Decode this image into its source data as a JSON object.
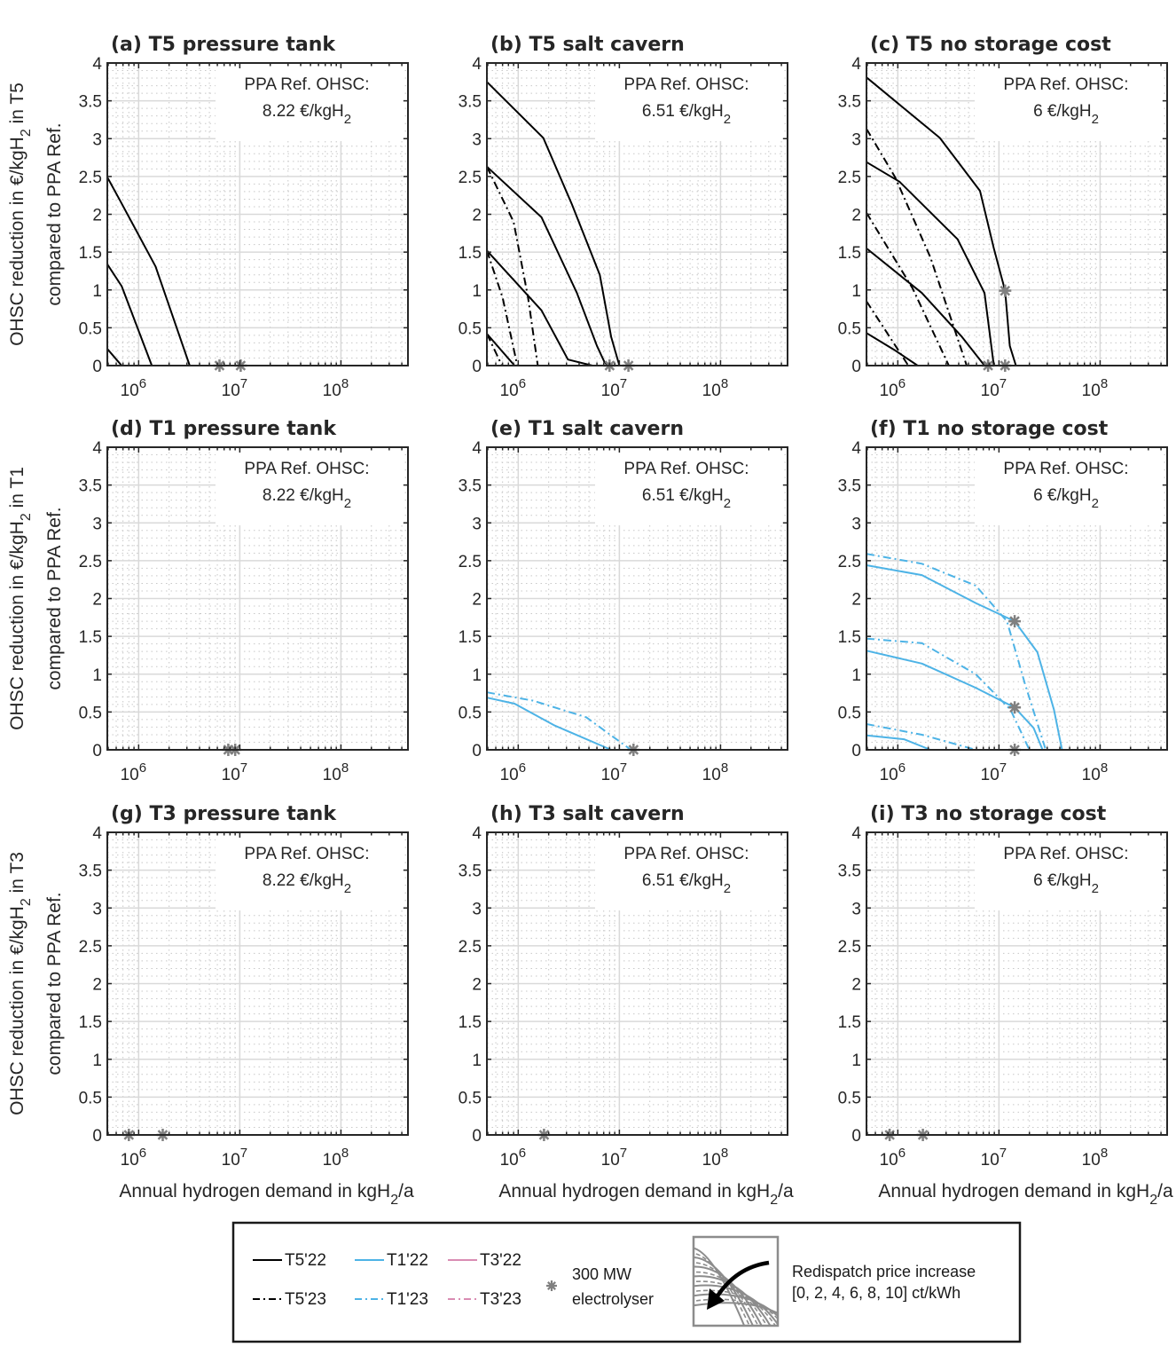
{
  "chart_data": {
    "type": "line",
    "xscale": "log",
    "xlim": [
      490000,
      460000000
    ],
    "ylim": [
      0,
      4
    ],
    "yticks": [
      "0",
      "0.5",
      "1",
      "1.5",
      "2",
      "2.5",
      "3",
      "3.5",
      "4"
    ],
    "xticks": [
      {
        "base": "10",
        "exp": "6"
      },
      {
        "base": "10",
        "exp": "7"
      },
      {
        "base": "10",
        "exp": "8"
      }
    ],
    "grid": "on",
    "colors": {
      "T5": "#000000",
      "T1": "#4DB3E6",
      "T3": "#D98CB3",
      "marker": "#808080"
    },
    "row_ylabels": [
      {
        "line1": "OHSC reduction in €/kgH",
        "sub": "2",
        "line1b": " in T5",
        "line2": "compared to PPA Ref."
      },
      {
        "line1": "OHSC reduction in €/kgH",
        "sub": "2",
        "line1b": " in T1",
        "line2": "compared to PPA Ref."
      },
      {
        "line1": "OHSC reduction in €/kgH",
        "sub": "2",
        "line1b": " in T3",
        "line2": "compared to PPA Ref."
      }
    ],
    "xlabel": {
      "text": "Annual hydrogen demand in kgH",
      "sub": "2",
      "suffix": "/a"
    },
    "annotation_label": "PPA Ref. OHSC:",
    "panels": [
      {
        "title": "(a) T5 pressure tank",
        "ref_value": "8.22 €/kgH",
        "ref_sub": "2",
        "series": [
          {
            "name": "T5'22",
            "style": "solid",
            "color": "T5",
            "points": [
              [
                490000,
                2.49
              ],
              [
                650000,
                2.19
              ],
              [
                1470000,
                1.31
              ],
              [
                3200000,
                0
              ],
              [
                8000000,
                0
              ]
            ]
          },
          {
            "name": "T5'22",
            "style": "solid",
            "color": "T5",
            "points": [
              [
                490000,
                1.34
              ],
              [
                680000,
                1.05
              ],
              [
                1350000,
                0
              ]
            ]
          },
          {
            "name": "T5'22",
            "style": "solid",
            "color": "T5",
            "points": [
              [
                490000,
                0.22
              ],
              [
                680000,
                0
              ]
            ]
          },
          {
            "name": "T5'23",
            "style": "dashdot",
            "color": "T5",
            "points": [
              [
                3200000,
                0
              ],
              [
                16000000,
                0
              ]
            ]
          }
        ],
        "markers": [
          [
            6300000,
            0
          ],
          [
            10200000,
            0
          ]
        ]
      },
      {
        "title": "(b) T5 salt cavern",
        "ref_value": "6.51 €/kgH",
        "ref_sub": "2",
        "series": [
          {
            "name": "T5'22",
            "style": "solid",
            "color": "T5",
            "points": [
              [
                490000,
                3.75
              ],
              [
                1770000,
                3.01
              ],
              [
                3400000,
                2.13
              ],
              [
                6400000,
                1.2
              ],
              [
                8300000,
                0.38
              ],
              [
                10000000,
                0
              ],
              [
                16000000,
                0
              ]
            ]
          },
          {
            "name": "T5'22",
            "style": "solid",
            "color": "T5",
            "points": [
              [
                490000,
                2.63
              ],
              [
                1700000,
                1.96
              ],
              [
                3800000,
                0.96
              ],
              [
                6000000,
                0.26
              ],
              [
                7100000,
                0.05
              ],
              [
                7700000,
                0
              ]
            ]
          },
          {
            "name": "T5'22",
            "style": "solid",
            "color": "T5",
            "points": [
              [
                490000,
                1.52
              ],
              [
                1700000,
                0.73
              ],
              [
                3100000,
                0.08
              ],
              [
                5400000,
                0
              ]
            ]
          },
          {
            "name": "T5'22",
            "style": "solid",
            "color": "T5",
            "points": [
              [
                490000,
                0.42
              ],
              [
                920000,
                0
              ]
            ]
          },
          {
            "name": "T5'23",
            "style": "dashdot",
            "color": "T5",
            "points": [
              [
                490000,
                2.63
              ],
              [
                900000,
                1.9
              ],
              [
                1250000,
                0.9
              ],
              [
                1560000,
                0
              ]
            ]
          },
          {
            "name": "T5'23",
            "style": "dashdot",
            "color": "T5",
            "points": [
              [
                490000,
                1.52
              ],
              [
                700000,
                0.9
              ],
              [
                980000,
                0
              ]
            ]
          },
          {
            "name": "T5'23",
            "style": "dashdot",
            "color": "T5",
            "points": [
              [
                490000,
                0.42
              ],
              [
                690000,
                0
              ]
            ]
          }
        ],
        "markers": [
          [
            8000000,
            0
          ],
          [
            12300000,
            0
          ]
        ]
      },
      {
        "title": "(c) T5 no storage cost",
        "ref_value": "6 €/kgH",
        "ref_sub": "2",
        "series": [
          {
            "name": "T5'22",
            "style": "solid",
            "color": "T5",
            "points": [
              [
                490000,
                3.81
              ],
              [
                2600000,
                3.01
              ],
              [
                6500000,
                2.31
              ],
              [
                8900000,
                1.55
              ],
              [
                11500000,
                0.99
              ],
              [
                12800000,
                0.26
              ],
              [
                14700000,
                0
              ],
              [
                19000000,
                0
              ]
            ]
          },
          {
            "name": "T5'22",
            "style": "solid",
            "color": "T5",
            "points": [
              [
                490000,
                2.69
              ],
              [
                1040000,
                2.43
              ],
              [
                3900000,
                1.67
              ],
              [
                7200000,
                0.96
              ],
              [
                8900000,
                0
              ]
            ]
          },
          {
            "name": "T5'22",
            "style": "solid",
            "color": "T5",
            "points": [
              [
                490000,
                1.55
              ],
              [
                1730000,
                0.96
              ],
              [
                4300000,
                0.38
              ],
              [
                7200000,
                0
              ]
            ]
          },
          {
            "name": "T5'22",
            "style": "solid",
            "color": "T5",
            "points": [
              [
                490000,
                0.43
              ],
              [
                940000,
                0.2
              ],
              [
                1570000,
                0
              ]
            ]
          },
          {
            "name": "T5'23",
            "style": "dashdot",
            "color": "T5",
            "points": [
              [
                490000,
                3.13
              ],
              [
                940000,
                2.49
              ],
              [
                2100000,
                1.43
              ],
              [
                4800000,
                0
              ]
            ]
          },
          {
            "name": "T5'23",
            "style": "dashdot",
            "color": "T5",
            "points": [
              [
                490000,
                2.02
              ],
              [
                1400000,
                1.02
              ],
              [
                3200000,
                0
              ]
            ]
          },
          {
            "name": "T5'23",
            "style": "dashdot",
            "color": "T5",
            "points": [
              [
                490000,
                0.85
              ],
              [
                1270000,
                0
              ]
            ]
          }
        ],
        "markers": [
          [
            11500000,
            0.99
          ],
          [
            7800000,
            0
          ],
          [
            11500000,
            0
          ]
        ]
      },
      {
        "title": "(d) T1 pressure tank",
        "ref_value": "8.22 €/kgH",
        "ref_sub": "2",
        "series": [
          {
            "name": "T1'22",
            "style": "solid",
            "color": "T1",
            "points": [
              [
                490000,
                0
              ],
              [
                50000000,
                0
              ]
            ]
          }
        ],
        "markers": [
          [
            7700000,
            0
          ],
          [
            9000000,
            0
          ]
        ]
      },
      {
        "title": "(e) T1 salt cavern",
        "ref_value": "6.51 €/kgH",
        "ref_sub": "2",
        "series": [
          {
            "name": "T1'22",
            "style": "solid",
            "color": "T1",
            "points": [
              [
                490000,
                0.69
              ],
              [
                920000,
                0.61
              ],
              [
                2300000,
                0.32
              ],
              [
                8300000,
                0
              ],
              [
                50000000,
                0
              ]
            ]
          },
          {
            "name": "T1'23",
            "style": "dashdot",
            "color": "T1",
            "points": [
              [
                490000,
                0.76
              ],
              [
                1400000,
                0.65
              ],
              [
                4700000,
                0.43
              ],
              [
                13000000,
                0
              ]
            ]
          }
        ],
        "markers": [
          [
            13800000,
            0
          ]
        ]
      },
      {
        "title": "(f) T1 no storage cost",
        "ref_value": "6 €/kgH",
        "ref_sub": "2",
        "series": [
          {
            "name": "T1'22",
            "style": "solid",
            "color": "T1",
            "points": [
              [
                490000,
                2.44
              ],
              [
                1730000,
                2.31
              ],
              [
                5900000,
                1.94
              ],
              [
                14300000,
                1.7
              ],
              [
                24000000,
                1.29
              ],
              [
                35000000,
                0.53
              ],
              [
                42000000,
                0
              ],
              [
                48000000,
                0
              ]
            ]
          },
          {
            "name": "T1'23",
            "style": "dashdot",
            "color": "T1",
            "points": [
              [
                490000,
                2.59
              ],
              [
                1730000,
                2.46
              ],
              [
                5900000,
                2.17
              ],
              [
                12000000,
                1.7
              ],
              [
                18000000,
                0.88
              ],
              [
                29000000,
                0
              ]
            ]
          },
          {
            "name": "T1'22",
            "style": "solid",
            "color": "T1",
            "points": [
              [
                490000,
                1.31
              ],
              [
                1730000,
                1.14
              ],
              [
                5900000,
                0.82
              ],
              [
                14300000,
                0.56
              ],
              [
                22000000,
                0.29
              ],
              [
                27000000,
                0
              ]
            ]
          },
          {
            "name": "T1'23",
            "style": "dashdot",
            "color": "T1",
            "points": [
              [
                490000,
                1.47
              ],
              [
                1730000,
                1.41
              ],
              [
                5900000,
                1.0
              ],
              [
                13000000,
                0.53
              ],
              [
                20000000,
                0
              ]
            ]
          },
          {
            "name": "T1'22",
            "style": "solid",
            "color": "T1",
            "points": [
              [
                490000,
                0.19
              ],
              [
                1150000,
                0.14
              ],
              [
                2100000,
                0
              ],
              [
                48000000,
                0
              ]
            ]
          },
          {
            "name": "T1'23",
            "style": "dashdot",
            "color": "T1",
            "points": [
              [
                490000,
                0.34
              ],
              [
                1730000,
                0.2
              ],
              [
                5900000,
                0
              ]
            ]
          }
        ],
        "markers": [
          [
            14300000,
            1.7
          ],
          [
            14300000,
            0.56
          ],
          [
            14300000,
            0
          ]
        ]
      },
      {
        "title": "(g) T3 pressure tank",
        "ref_value": "8.22 €/kgH",
        "ref_sub": "2",
        "series": [
          {
            "name": "T3'22",
            "style": "solid",
            "color": "T3",
            "points": [
              [
                490000,
                0
              ],
              [
                1150000,
                0
              ]
            ]
          },
          {
            "name": "T5'23",
            "style": "dashdot",
            "color": "T5",
            "points": [
              [
                1150000,
                0
              ],
              [
                1730000,
                0
              ]
            ]
          }
        ],
        "markers": [
          [
            800000,
            0
          ],
          [
            1730000,
            0
          ]
        ]
      },
      {
        "title": "(h) T3 salt cavern",
        "ref_value": "6.51 €/kgH",
        "ref_sub": "2",
        "series": [
          {
            "name": "T3'22",
            "style": "solid",
            "color": "T3",
            "points": [
              [
                490000,
                0
              ],
              [
                1200000,
                0
              ]
            ]
          },
          {
            "name": "T5'23",
            "style": "dashdot",
            "color": "T5",
            "points": [
              [
                1200000,
                0
              ],
              [
                1800000,
                0
              ]
            ]
          }
        ],
        "markers": [
          [
            1800000,
            0
          ]
        ]
      },
      {
        "title": "(i) T3 no storage cost",
        "ref_value": "6 €/kgH",
        "ref_sub": "2",
        "series": [
          {
            "name": "T3'22",
            "style": "solid",
            "color": "T3",
            "points": [
              [
                490000,
                0
              ],
              [
                1150000,
                0
              ]
            ]
          },
          {
            "name": "T5'23",
            "style": "dashdot",
            "color": "T5",
            "points": [
              [
                1150000,
                0
              ],
              [
                1770000,
                0
              ]
            ]
          }
        ],
        "markers": [
          [
            830000,
            0
          ],
          [
            1770000,
            0
          ]
        ]
      }
    ],
    "legend": {
      "placement": "bottom-center",
      "entries": [
        {
          "label": "T5'22",
          "style": "solid",
          "color": "T5"
        },
        {
          "label": "T1'22",
          "style": "solid",
          "color": "T1"
        },
        {
          "label": "T3'22",
          "style": "solid",
          "color": "T3"
        },
        {
          "label": "T5'23",
          "style": "dashdot",
          "color": "T5"
        },
        {
          "label": "T1'23",
          "style": "dashdot",
          "color": "T1"
        },
        {
          "label": "T3'23",
          "style": "dashdot",
          "color": "T3"
        }
      ],
      "marker_label_line1": "300 MW",
      "marker_label_line2": "electrolyser",
      "redispatch_line1": "Redispatch price increase",
      "redispatch_line2": "[0, 2, 4, 6, 8, 10] ct/kWh"
    }
  }
}
